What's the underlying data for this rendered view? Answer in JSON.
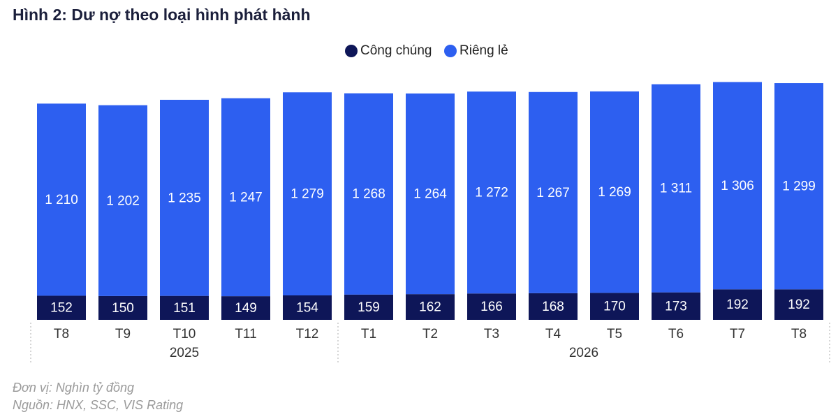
{
  "chart_data": {
    "type": "stacked_bar",
    "title": "Hình 2: Dư nợ theo loại hình phát hành",
    "groups": [
      {
        "label": "2025",
        "categories": [
          "T8",
          "T9",
          "T10",
          "T11",
          "T12"
        ]
      },
      {
        "label": "2026",
        "categories": [
          "T1",
          "T2",
          "T3",
          "T4",
          "T5",
          "T6",
          "T7",
          "T8"
        ]
      }
    ],
    "series": [
      {
        "name": "Công chúng",
        "color": "#0e1658",
        "values": [
          152,
          150,
          151,
          149,
          154,
          159,
          162,
          166,
          168,
          170,
          173,
          192,
          192
        ]
      },
      {
        "name": "Riêng lẻ",
        "color": "#2d5ff0",
        "values": [
          1210,
          1202,
          1235,
          1247,
          1279,
          1268,
          1264,
          1272,
          1267,
          1269,
          1311,
          1306,
          1299
        ],
        "value_labels": [
          "1 210",
          "1 202",
          "1 235",
          "1 247",
          "1 279",
          "1 268",
          "1 264",
          "1 272",
          "1 267",
          "1 269",
          "1 311",
          "1 306",
          "1 299"
        ]
      }
    ],
    "ylim": [
      0,
      1500
    ],
    "notes": [
      "Đơn vị: Nghìn tỷ đồng",
      "Nguồn: HNX, SSC, VIS Rating"
    ]
  }
}
